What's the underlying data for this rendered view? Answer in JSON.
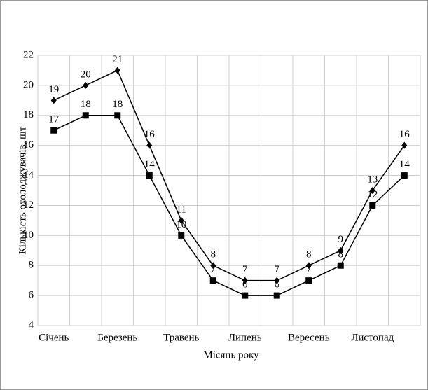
{
  "chart_data": {
    "type": "line",
    "x_label": "Місяць року",
    "y_label": "Кількість охолоджувачів, шт",
    "categories": [
      "Січень",
      null,
      "Березень",
      null,
      "Травень",
      null,
      "Липень",
      null,
      "Вересень",
      null,
      "Листопад",
      null
    ],
    "series": [
      {
        "color": "#000000",
        "marker": "diamond",
        "values": [
          19,
          20,
          21,
          16,
          11,
          8,
          7,
          7,
          8,
          9,
          13,
          16
        ]
      },
      {
        "color": "#000000",
        "marker": "square",
        "values": [
          17,
          18,
          18,
          14,
          10,
          7,
          6,
          6,
          7,
          8,
          12,
          14
        ]
      }
    ],
    "ylim": [
      4,
      22
    ],
    "yticks": [
      4,
      6,
      8,
      10,
      12,
      14,
      16,
      18,
      20,
      22
    ],
    "grid": true
  }
}
